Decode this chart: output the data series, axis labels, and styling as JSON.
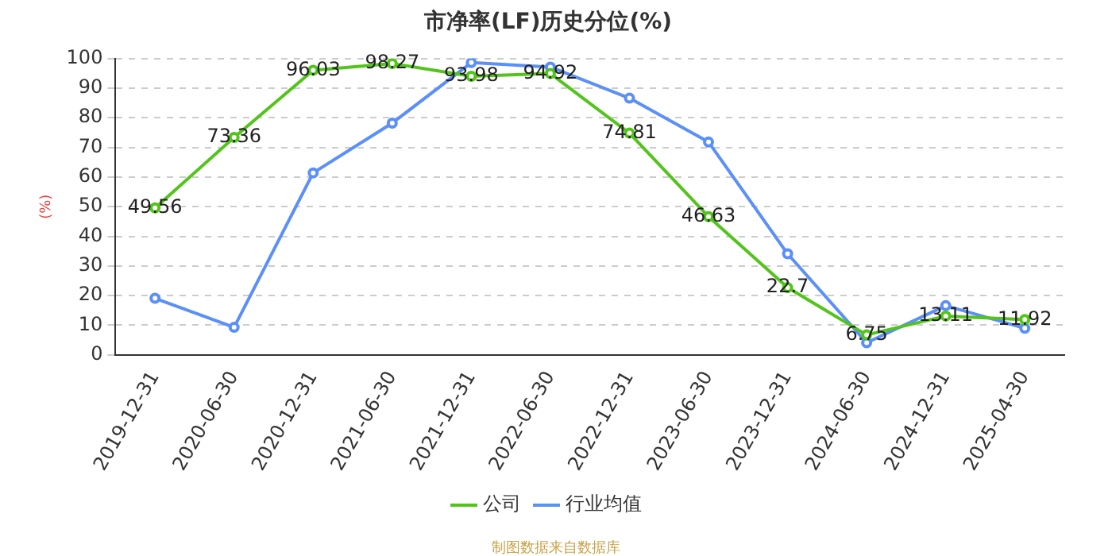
{
  "chart_data": {
    "type": "line",
    "title": "市净率(LF)历史分位(%)",
    "ylabel": "(%)",
    "categories": [
      "2019-12-31",
      "2020-06-30",
      "2020-12-31",
      "2021-06-30",
      "2021-12-31",
      "2022-06-30",
      "2022-12-31",
      "2023-06-30",
      "2023-12-31",
      "2024-06-30",
      "2024-12-31",
      "2025-04-30"
    ],
    "series": [
      {
        "name": "公司",
        "color": "#52c41a",
        "values": [
          49.56,
          73.36,
          96.03,
          98.27,
          93.98,
          94.92,
          74.81,
          46.63,
          22.7,
          6.75,
          13.11,
          11.92
        ],
        "value_labels": [
          "49.56",
          "73.36",
          "96.03",
          "98.27",
          "93.98",
          "94.92",
          "74.81",
          "46.63",
          "22.7",
          "6.75",
          "13.11",
          "11.92"
        ]
      },
      {
        "name": "行业均值",
        "color": "#5b8ff9",
        "values": [
          19.1,
          9.3,
          61.4,
          78.2,
          98.6,
          97.1,
          86.6,
          71.8,
          34.1,
          4.1,
          16.6,
          9.0
        ]
      }
    ],
    "ylim": [
      0,
      100
    ],
    "yticks": [
      0,
      10,
      20,
      30,
      40,
      50,
      60,
      70,
      80,
      90,
      100
    ],
    "grid": "y",
    "legend": "bottom",
    "marker": "circle",
    "line_style": "solid",
    "annotations": [
      "制图数据来自数据库"
    ]
  }
}
